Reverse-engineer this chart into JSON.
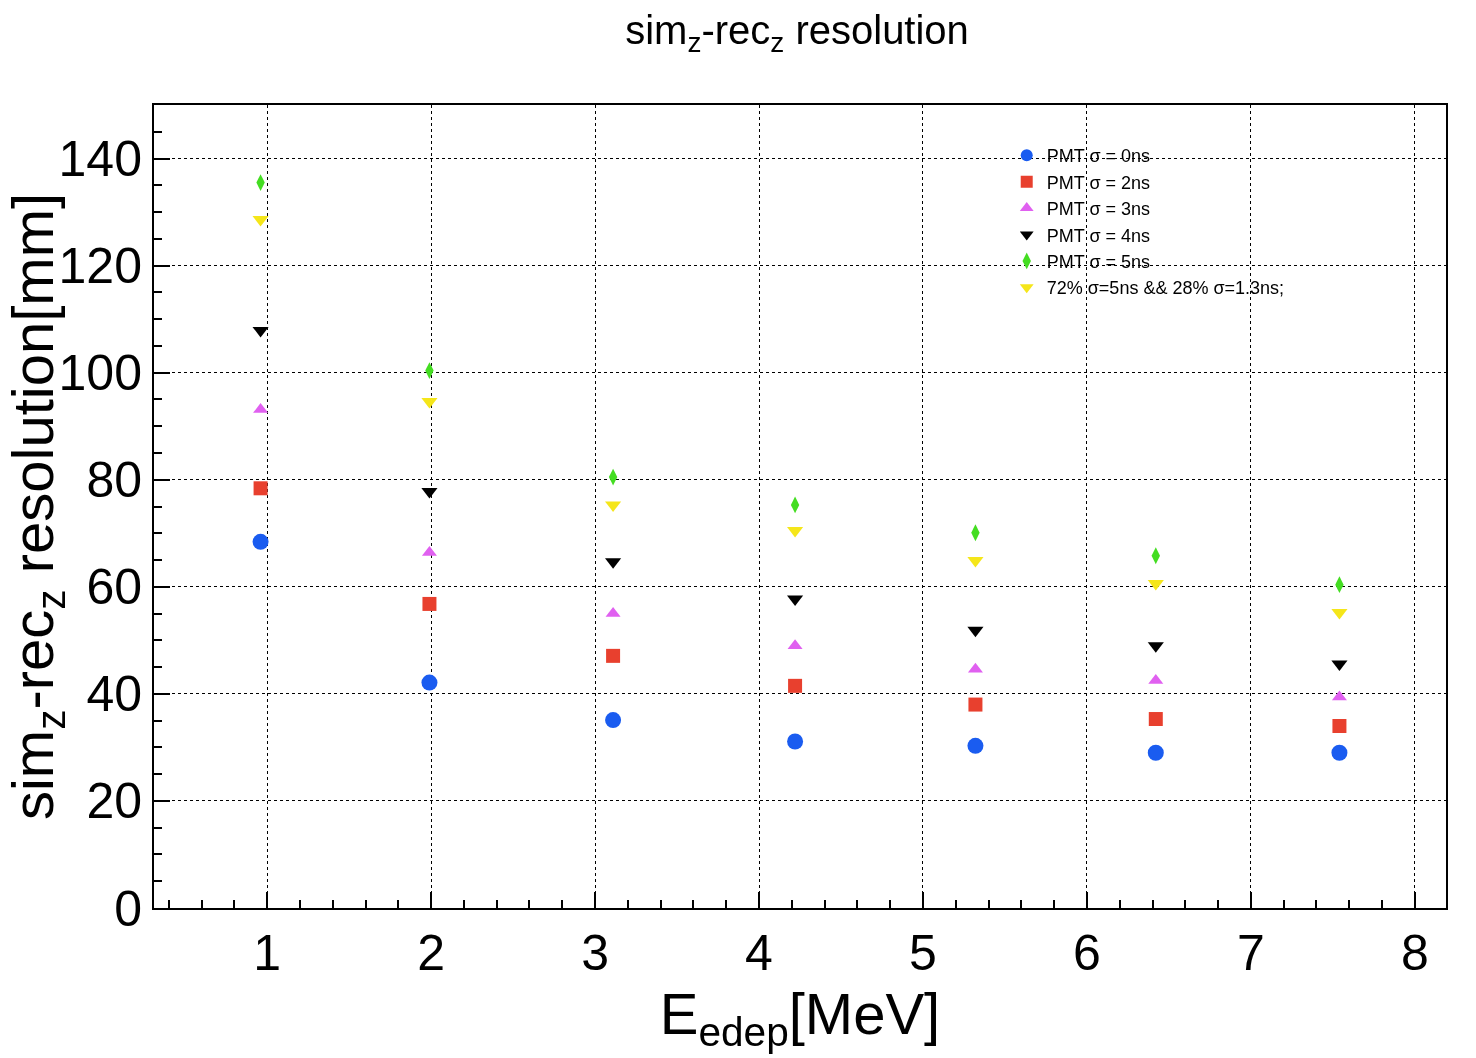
{
  "chart_data": {
    "type": "scatter",
    "title": "sim$_{z}$-rec$_{z}$ resolution",
    "xlabel": "E$_{edep}$[MeV]",
    "ylabel": "sim$_{z}$-rec$_{z}$ resolution[mm]",
    "x": [
      0.96,
      1.99,
      3.11,
      4.22,
      5.32,
      6.42,
      7.54
    ],
    "series": [
      {
        "name": "PMT σ = 0ns",
        "color": "#1a5cf0",
        "marker": "circle",
        "values": [
          68.4,
          42.1,
          35.1,
          31.1,
          30.3,
          29.0,
          29.0
        ]
      },
      {
        "name": "PMT σ = 2ns",
        "color": "#e8402e",
        "marker": "square",
        "values": [
          78.4,
          56.8,
          47.1,
          41.5,
          38.0,
          35.3,
          34.0
        ]
      },
      {
        "name": "PMT σ = 3ns",
        "color": "#e060f0",
        "marker": "triangle",
        "values": [
          93.1,
          66.4,
          55.0,
          49.0,
          44.6,
          42.5,
          39.4
        ]
      },
      {
        "name": "PMT σ = 4ns",
        "color": "#000000",
        "marker": "triangle-down",
        "values": [
          107.9,
          77.8,
          64.7,
          57.7,
          51.9,
          49.0,
          45.6
        ]
      },
      {
        "name": "PMT σ = 5ns",
        "color": "#44dd22",
        "marker": "diamond",
        "values": [
          135.5,
          100.4,
          80.5,
          75.3,
          70.1,
          65.8,
          60.4
        ]
      },
      {
        "name": "72% σ=5ns && 28% σ=1.3ns;",
        "color": "#f5e61a",
        "marker": "triangle-down",
        "values": [
          128.6,
          94.6,
          75.3,
          70.5,
          64.9,
          60.6,
          55.2
        ]
      }
    ],
    "xlim": [
      0.31,
      8.19
    ],
    "xticks": [
      1,
      2,
      3,
      4,
      5,
      6,
      7,
      8
    ],
    "ylim": [
      0,
      150
    ],
    "yticks": [
      0,
      20,
      40,
      60,
      80,
      100,
      120,
      140
    ],
    "grid": true,
    "legend": "top right"
  }
}
